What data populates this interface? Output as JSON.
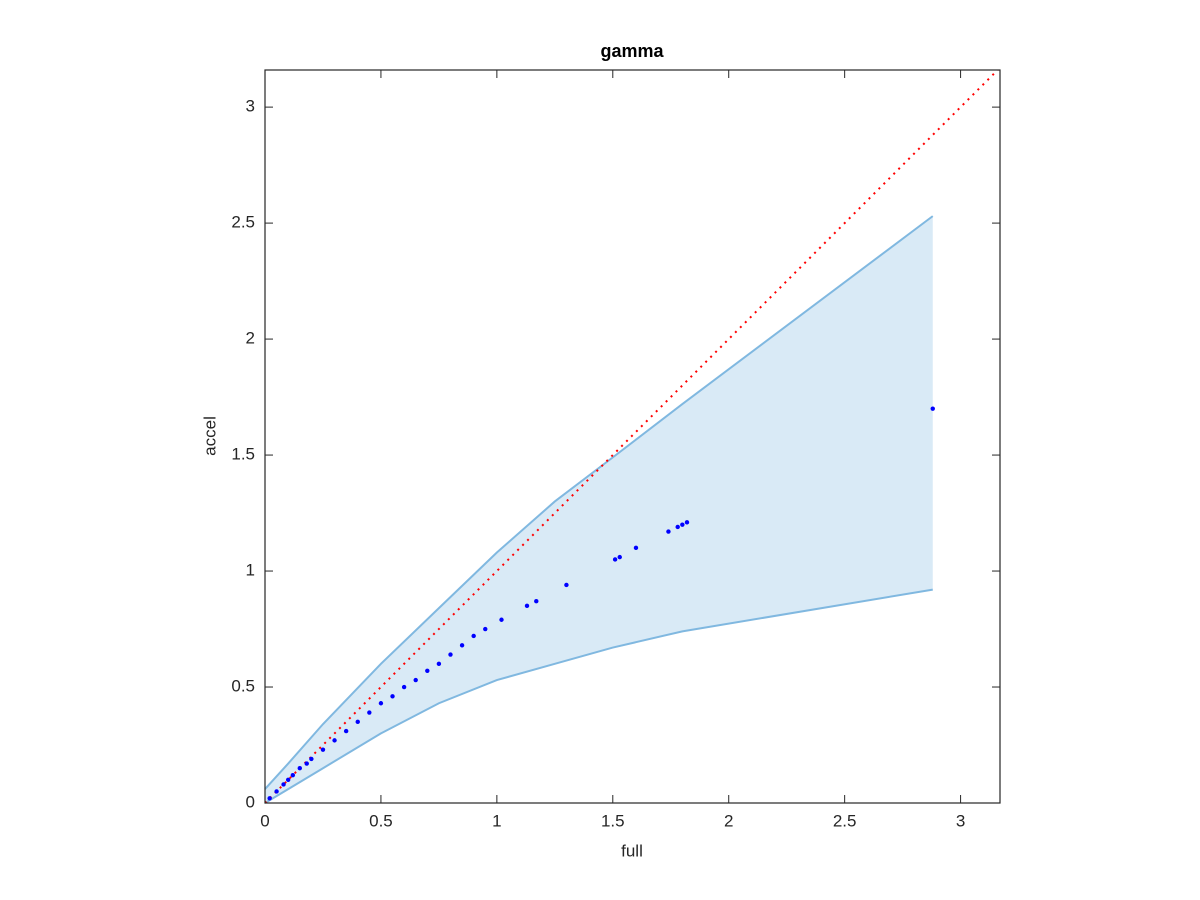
{
  "chart_data": {
    "type": "scatter",
    "title": "gamma",
    "x_label": "full",
    "y_label": "accel",
    "x": [
      0.02,
      0.05,
      0.08,
      0.1,
      0.12,
      0.15,
      0.18,
      0.2,
      0.25,
      0.3,
      0.35,
      0.4,
      0.45,
      0.5,
      0.55,
      0.6,
      0.65,
      0.7,
      0.75,
      0.8,
      0.85,
      0.9,
      0.95,
      1.02,
      1.13,
      1.17,
      1.3,
      1.51,
      1.53,
      1.6,
      1.74,
      1.78,
      1.8,
      1.82,
      2.88
    ],
    "values": [
      0.02,
      0.05,
      0.08,
      0.1,
      0.12,
      0.15,
      0.17,
      0.19,
      0.23,
      0.27,
      0.31,
      0.35,
      0.39,
      0.43,
      0.46,
      0.5,
      0.53,
      0.57,
      0.6,
      0.64,
      0.68,
      0.72,
      0.75,
      0.79,
      0.85,
      0.87,
      0.94,
      1.05,
      1.06,
      1.1,
      1.17,
      1.19,
      1.2,
      1.21,
      1.7
    ],
    "color": "#0000ff",
    "band": {
      "x": [
        0,
        0.1,
        0.25,
        0.5,
        0.75,
        1,
        1.25,
        1.5,
        1.8,
        2.88
      ],
      "upper": [
        0.06,
        0.17,
        0.34,
        0.6,
        0.84,
        1.08,
        1.3,
        1.49,
        1.72,
        2.53
      ],
      "lower": [
        0,
        0.06,
        0.15,
        0.3,
        0.43,
        0.53,
        0.6,
        0.67,
        0.74,
        0.92
      ],
      "color": "#80b8e0"
    },
    "reference_line": {
      "x": [
        0,
        3.16
      ],
      "y": [
        0,
        3.16
      ],
      "color": "#ff0000"
    },
    "xlim": [
      0,
      3.17
    ],
    "ylim": [
      0,
      3.16
    ],
    "xticks": [
      0,
      0.5,
      1,
      1.5,
      2,
      2.5,
      3
    ],
    "yticks": [
      0,
      0.5,
      1,
      1.5,
      2,
      2.5,
      3
    ]
  }
}
